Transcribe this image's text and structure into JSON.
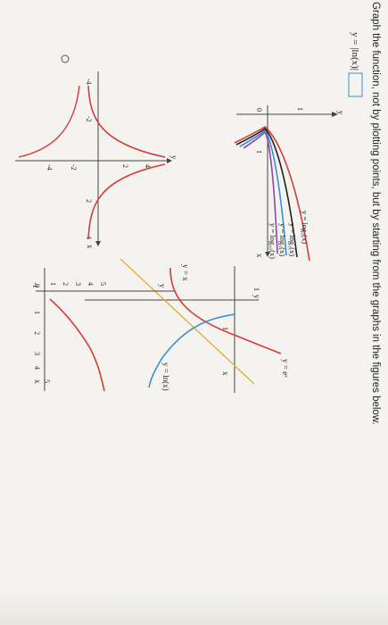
{
  "question": {
    "instruction": "Graph the function, not by plotting points, but by starting from the graphs in the figures below.",
    "equation": "y = |ln(x)|"
  },
  "answer_options": [
    {
      "name": "option-a",
      "selected": false,
      "tick_labels": [
        "-4",
        "-2",
        "2",
        "4",
        "2",
        "4",
        "-2",
        "-4"
      ],
      "axis_x": "x",
      "axis_y": "y"
    },
    {
      "name": "option-b",
      "selected": false,
      "tick_labels": [
        "1",
        "2",
        "3",
        "4",
        "5",
        "1",
        "2",
        "3",
        "4",
        "5",
        "-1"
      ],
      "origin": "0",
      "axis_x": "x",
      "axis_y": "y"
    }
  ],
  "reference_graphs": {
    "log_graph": {
      "labels": [
        "y = log₂(x)",
        "y = log₃(x)",
        "y = log₅(x)",
        "y = log₁₀(x)"
      ],
      "tick_y": "1",
      "tick_x": "1",
      "origin": "0",
      "axis_x": "x",
      "axis_y": "y",
      "colors": [
        "#d43c3a",
        "#222222",
        "#3d8fd0",
        "#9146b0"
      ]
    },
    "exp_graph": {
      "labels": [
        "y = eˣ",
        "y = x",
        "y = ln(x)"
      ],
      "tick_y": "1",
      "tick_x": "1",
      "axis_x": "x",
      "axis_y": "y",
      "colors": [
        "#d43c3a",
        "#e2b23a",
        "#3d8fd0"
      ]
    }
  }
}
